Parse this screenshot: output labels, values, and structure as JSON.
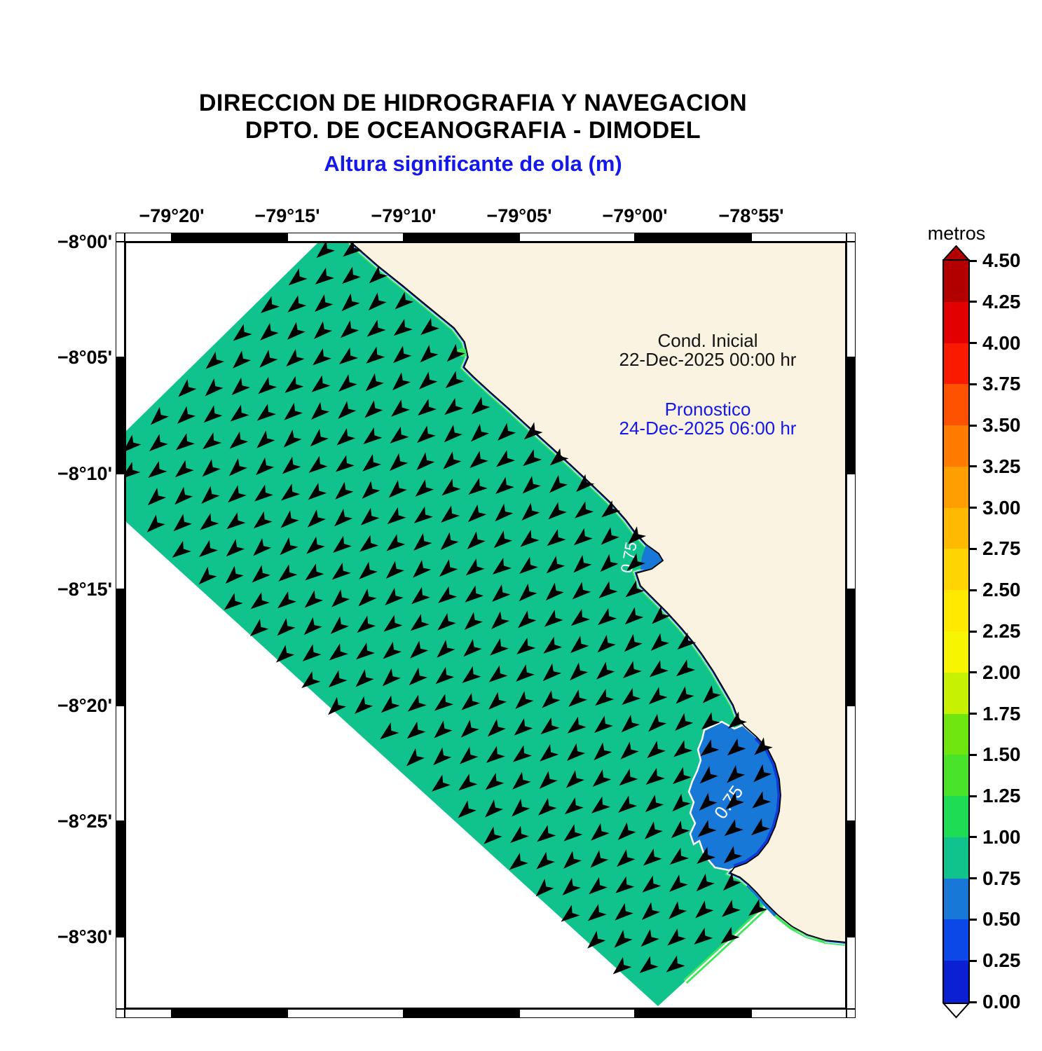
{
  "header": {
    "title_line1": "DIRECCION DE HIDROGRAFIA Y NAVEGACION",
    "title_line2": "DPTO. DE OCEANOGRAFIA - DIMODEL",
    "subtitle": "Altura significante de ola (m)"
  },
  "map": {
    "x_tick_labels": [
      "−79°20'",
      "−79°15'",
      "−79°10'",
      "−79°05'",
      "−79°00'",
      "−78°55'"
    ],
    "y_tick_labels": [
      "−8°00'",
      "−8°05'",
      "−8°10'",
      "−8°15'",
      "−8°20'",
      "−8°25'",
      "−8°30'"
    ],
    "annotations": {
      "initial_condition_label": "Cond. Inicial",
      "initial_condition_datetime": "22-Dec-2025 00:00 hr",
      "forecast_label": "Pronostico",
      "forecast_datetime": "24-Dec-2025 06:00 hr"
    },
    "contour_labels": [
      {
        "text": "0.75"
      },
      {
        "text": "0.75"
      }
    ]
  },
  "colorbar": {
    "title": "metros",
    "unit": "m",
    "tick_labels": [
      "4.50",
      "4.25",
      "4.00",
      "3.75",
      "3.50",
      "3.25",
      "3.00",
      "2.75",
      "2.50",
      "2.25",
      "2.00",
      "1.75",
      "1.50",
      "1.25",
      "1.00",
      "0.75",
      "0.50",
      "0.25",
      "0.00"
    ],
    "segments": [
      {
        "range": "4.25–4.50",
        "color": "#b20000"
      },
      {
        "range": "4.00–4.25",
        "color": "#e30000"
      },
      {
        "range": "3.75–4.00",
        "color": "#fa1a00"
      },
      {
        "range": "3.50–3.75",
        "color": "#ff5200"
      },
      {
        "range": "3.25–3.50",
        "color": "#ff7c00"
      },
      {
        "range": "3.00–3.25",
        "color": "#ff9e00"
      },
      {
        "range": "2.75–3.00",
        "color": "#ffba00"
      },
      {
        "range": "2.50–2.75",
        "color": "#ffd400"
      },
      {
        "range": "2.25–2.50",
        "color": "#ffe900"
      },
      {
        "range": "2.00–2.25",
        "color": "#f7f500"
      },
      {
        "range": "1.75–2.00",
        "color": "#c6f100"
      },
      {
        "range": "1.50–1.75",
        "color": "#6fe60f"
      },
      {
        "range": "1.25–1.50",
        "color": "#49e32a"
      },
      {
        "range": "1.00–1.25",
        "color": "#1fdc55"
      },
      {
        "range": "0.75–1.00",
        "color": "#10c28b"
      },
      {
        "range": "0.50–0.75",
        "color": "#1778d8"
      },
      {
        "range": "0.25–0.50",
        "color": "#0c48e8"
      },
      {
        "range": "0.00–0.25",
        "color": "#0b1fd3"
      }
    ],
    "top_arrow_color": "#b20000",
    "bottom_arrow_color": "#ffffff"
  },
  "field": {
    "type": "heatmap",
    "quantity": "significant wave height",
    "unit": "m",
    "offshore_value_band": "0.75–1.00",
    "nearshore_bay_value_band": "0.50–0.75",
    "labeled_contour": "0.75",
    "vector_symbol": "wave-direction-arrow",
    "vector_direction": "toward southwest"
  },
  "colors": {
    "sea": "#10c28b",
    "land": "#faf3e1",
    "bay": "#1778d8",
    "bay_deep": "#0f3cd8",
    "shore_green": "#3ee65e",
    "shore_navy": "#0a28c8",
    "contour_line": "#ffffff",
    "coastline": "#000000",
    "blue_text": "#1518ea",
    "dark_text": "#141414",
    "arrow": "#000000"
  }
}
